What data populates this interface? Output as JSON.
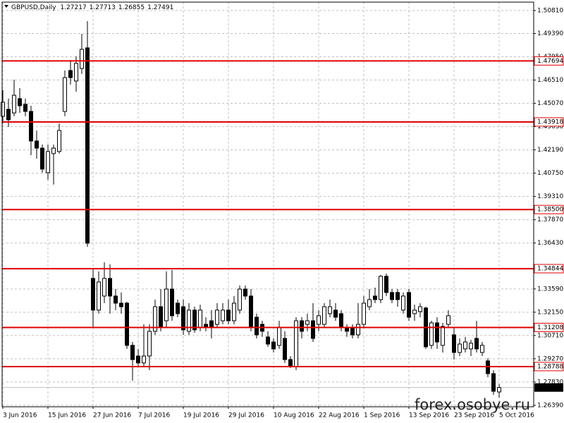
{
  "chart_data": {
    "type": "candlestick",
    "title": "GBPUSD,Daily",
    "last_ohlc": [
      1.27217,
      1.27713,
      1.26855,
      1.27491
    ],
    "watermark": "forex.osobye.ru",
    "categories": [
      "3 Jun 2016",
      null,
      null,
      null,
      null,
      null,
      null,
      null,
      "15 Jun 2016",
      null,
      null,
      null,
      null,
      null,
      null,
      null,
      "27 Jun 2016",
      null,
      null,
      null,
      null,
      null,
      null,
      null,
      "7 Jul 2016",
      null,
      null,
      null,
      null,
      null,
      null,
      null,
      "19 Jul 2016",
      null,
      null,
      null,
      null,
      null,
      null,
      null,
      "29 Jul 2016",
      null,
      null,
      null,
      null,
      null,
      null,
      null,
      "10 Aug 2016",
      null,
      null,
      null,
      null,
      null,
      null,
      null,
      "22 Aug 2016",
      null,
      null,
      null,
      null,
      null,
      null,
      null,
      "1 Sep 2016",
      null,
      null,
      null,
      null,
      null,
      null,
      null,
      "13 Sep 2016",
      null,
      null,
      null,
      null,
      null,
      null,
      null,
      "23 Sep 2016",
      null,
      null,
      null,
      null,
      null,
      null,
      null,
      "5 Oct 2016"
    ],
    "open": [
      1.4427,
      1.447,
      1.4448,
      1.4536,
      1.4501,
      1.4457,
      1.4274,
      1.423,
      1.4078,
      1.4196,
      1.4209,
      1.4457,
      1.471,
      1.4645,
      1.4723,
      1.485,
      1.3424,
      1.3228,
      1.3315,
      1.3424,
      1.3315,
      1.3271,
      1.3271,
      1.301,
      1.2944,
      1.2901,
      1.2944,
      1.3097,
      1.3249,
      1.3162,
      1.3358,
      1.3271,
      1.3249,
      1.3097,
      1.3228,
      1.3119,
      1.314,
      1.3162,
      1.314,
      1.3162,
      1.3228,
      1.3162,
      1.3228,
      1.3358,
      1.3315,
      1.3184,
      1.314,
      1.3062,
      1.3031,
      1.301,
      1.3053,
      1.2922,
      1.2879,
      1.3162,
      1.314,
      1.3162,
      1.314,
      1.314,
      1.3206,
      1.3228,
      1.3206,
      1.3119,
      1.3119,
      1.3075,
      1.314,
      1.3249,
      1.3315,
      1.3293,
      1.3437,
      1.3337,
      1.3337,
      1.3228,
      1.3337,
      1.3206,
      1.3219,
      1.3241,
      1.301,
      1.3149,
      1.301,
      1.314,
      1.3075,
      1.2966,
      1.2988,
      1.2988,
      1.3053,
      1.2966,
      1.2914,
      1.2835,
      1.27217
    ],
    "high": [
      1.4588,
      1.4536,
      1.4653,
      1.4601,
      1.4536,
      1.4492,
      1.4339,
      1.4252,
      1.4252,
      1.4252,
      1.4383,
      1.471,
      1.4775,
      1.4797,
      1.4937,
      1.5015,
      1.3489,
      1.3467,
      1.3524,
      1.3511,
      1.3358,
      1.3337,
      1.328,
      1.3031,
      1.2988,
      1.314,
      1.314,
      1.3293,
      1.3358,
      1.3467,
      1.3476,
      1.3293,
      1.3293,
      1.3271,
      1.3249,
      1.3262,
      1.3184,
      1.3228,
      1.3271,
      1.3271,
      1.3293,
      1.3315,
      1.338,
      1.338,
      1.3358,
      1.3206,
      1.3162,
      1.3097,
      1.3053,
      1.3162,
      1.3097,
      1.2944,
      1.3184,
      1.3184,
      1.3206,
      1.3271,
      1.3228,
      1.3271,
      1.3293,
      1.3271,
      1.3228,
      1.314,
      1.314,
      1.3271,
      1.3315,
      1.3358,
      1.3367,
      1.3446,
      1.3454,
      1.3358,
      1.3358,
      1.3337,
      1.3358,
      1.3262,
      1.3271,
      1.3249,
      1.3162,
      1.3184,
      1.3149,
      1.3228,
      1.3119,
      1.3053,
      1.3062,
      1.3044,
      1.3162,
      1.3031,
      1.2931,
      1.2857,
      1.27713
    ],
    "low": [
      1.4383,
      1.4361,
      1.4427,
      1.4448,
      1.4427,
      1.4187,
      1.4165,
      1.4078,
      1.4034,
      1.4004,
      1.4196,
      1.4427,
      1.4623,
      1.4579,
      1.4688,
      1.362,
      1.3119,
      1.3206,
      1.3271,
      1.3206,
      1.3228,
      1.3206,
      1.2988,
      1.2792,
      1.2879,
      1.2879,
      1.2857,
      1.3075,
      1.3097,
      1.3119,
      1.3162,
      1.3184,
      1.3075,
      1.3075,
      1.3088,
      1.3097,
      1.3097,
      1.3053,
      1.3119,
      1.314,
      1.314,
      1.314,
      1.3206,
      1.3293,
      1.3097,
      1.3053,
      1.3062,
      1.3001,
      1.2966,
      1.2988,
      1.2901,
      1.287,
      1.2857,
      1.3053,
      1.3097,
      1.3031,
      1.3097,
      1.3119,
      1.3184,
      1.3162,
      1.3097,
      1.3062,
      1.3053,
      1.3053,
      1.3119,
      1.3228,
      1.3271,
      1.3271,
      1.3315,
      1.3271,
      1.3249,
      1.3206,
      1.3162,
      1.3162,
      1.3184,
      1.2988,
      1.2988,
      1.2988,
      1.2966,
      1.3119,
      1.2922,
      1.2944,
      1.2966,
      1.2944,
      1.2966,
      1.2944,
      1.2813,
      1.2704,
      1.26855
    ],
    "close": [
      1.4514,
      1.4405,
      1.4557,
      1.4492,
      1.4457,
      1.4274,
      1.423,
      1.41,
      1.4209,
      1.423,
      1.4339,
      1.4666,
      1.4666,
      1.4754,
      1.4841,
      1.3642,
      1.3228,
      1.3402,
      1.3424,
      1.3315,
      1.3271,
      1.3249,
      1.301,
      1.2922,
      1.2901,
      1.2944,
      1.3097,
      1.3249,
      1.3119,
      1.3358,
      1.3193,
      1.3206,
      1.3106,
      1.3228,
      1.3106,
      1.3228,
      1.3119,
      1.3119,
      1.3228,
      1.3228,
      1.3162,
      1.3271,
      1.3358,
      1.3315,
      1.3119,
      1.3075,
      1.3097,
      1.3018,
      1.2988,
      1.3119,
      1.2922,
      1.2879,
      1.3162,
      1.3097,
      1.3162,
      1.3053,
      1.3193,
      1.3249,
      1.3249,
      1.3184,
      1.3119,
      1.3097,
      1.3075,
      1.314,
      1.3271,
      1.3293,
      1.3293,
      1.3437,
      1.3337,
      1.3293,
      1.3293,
      1.3315,
      1.3184,
      1.3228,
      1.3249,
      1.3001,
      1.3149,
      1.3031,
      1.3127,
      1.3193,
      1.2966,
      1.3018,
      1.3031,
      1.3023,
      1.2988,
      1.301,
      1.2835,
      1.2726,
      1.27491
    ],
    "ylim": [
      1.263,
      1.5133
    ],
    "yticks": [
      {
        "value": 1.5081,
        "label": "1.50810"
      },
      {
        "value": 1.4939,
        "label": "1.49390"
      },
      {
        "value": 1.4795,
        "label": "1.47950"
      },
      {
        "value": 1.4651,
        "label": "1.46510"
      },
      {
        "value": 1.4507,
        "label": "1.45070"
      },
      {
        "value": 1.4363,
        "label": "1.43630"
      },
      {
        "value": 1.4219,
        "label": "1.42190"
      },
      {
        "value": 1.4075,
        "label": "1.40750"
      },
      {
        "value": 1.3931,
        "label": "1.39310"
      },
      {
        "value": 1.3787,
        "label": "1.37870"
      },
      {
        "value": 1.3643,
        "label": "1.36430"
      },
      {
        "value": 1.3359,
        "label": "1.33590"
      },
      {
        "value": 1.3215,
        "label": "1.32150"
      },
      {
        "value": 1.3071,
        "label": "1.30710"
      },
      {
        "value": 1.2927,
        "label": "1.29270"
      },
      {
        "value": 1.2783,
        "label": "1.27830"
      },
      {
        "value": 1.2639,
        "label": "1.26390"
      }
    ],
    "grid": true,
    "levels": [
      1.47694,
      1.43918,
      {
        "value": 1.385,
        "label": "1.38500"
      },
      1.34844,
      1.31208,
      1.28788
    ],
    "level_color": "#e00000",
    "up_color": "#ffffff",
    "down_color": "#000000"
  }
}
